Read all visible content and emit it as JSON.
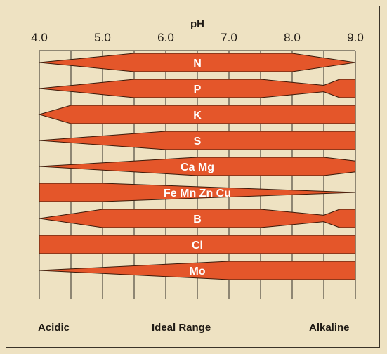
{
  "axis": {
    "title": "pH",
    "ticks": [
      "4.0",
      "5.0",
      "6.0",
      "7.0",
      "8.0",
      "9.0"
    ],
    "min": 4.0,
    "max": 9.0,
    "grid": true
  },
  "footer": {
    "left": "Acidic",
    "center": "Ideal Range",
    "right": "Alkaline"
  },
  "colors": {
    "band": "#e4562a",
    "band_outline": "#3a1a0a",
    "grid": "#2e2a24",
    "background": "#eee2c2"
  },
  "nutrients": [
    {
      "label": "N",
      "profile": [
        [
          4.0,
          0.0
        ],
        [
          5.5,
          1.0
        ],
        [
          8.0,
          1.0
        ],
        [
          9.0,
          0.0
        ]
      ]
    },
    {
      "label": "P",
      "profile": [
        [
          4.0,
          0.0
        ],
        [
          5.5,
          1.0
        ],
        [
          7.5,
          1.0
        ],
        [
          8.5,
          0.35
        ],
        [
          8.75,
          1.0
        ],
        [
          9.0,
          1.0
        ]
      ]
    },
    {
      "label": "K",
      "profile": [
        [
          4.0,
          0.0
        ],
        [
          4.5,
          1.0
        ],
        [
          9.0,
          1.0
        ]
      ]
    },
    {
      "label": "S",
      "profile": [
        [
          4.0,
          0.0
        ],
        [
          6.0,
          1.0
        ],
        [
          9.0,
          1.0
        ]
      ]
    },
    {
      "label": "Ca Mg",
      "profile": [
        [
          4.0,
          0.0
        ],
        [
          6.5,
          1.0
        ],
        [
          8.5,
          1.0
        ],
        [
          9.0,
          0.6
        ]
      ]
    },
    {
      "label": "Fe Mn Zn Cu",
      "profile": [
        [
          4.0,
          1.0
        ],
        [
          5.0,
          1.0
        ],
        [
          9.0,
          0.0
        ]
      ]
    },
    {
      "label": "B",
      "profile": [
        [
          4.0,
          0.0
        ],
        [
          5.0,
          1.0
        ],
        [
          7.5,
          1.0
        ],
        [
          8.5,
          0.35
        ],
        [
          8.75,
          1.0
        ],
        [
          9.0,
          1.0
        ]
      ]
    },
    {
      "label": "Cl",
      "profile": [
        [
          4.0,
          1.0
        ],
        [
          9.0,
          1.0
        ]
      ]
    },
    {
      "label": "Mo",
      "profile": [
        [
          4.0,
          0.0
        ],
        [
          7.0,
          1.0
        ],
        [
          9.0,
          1.0
        ]
      ]
    }
  ]
}
